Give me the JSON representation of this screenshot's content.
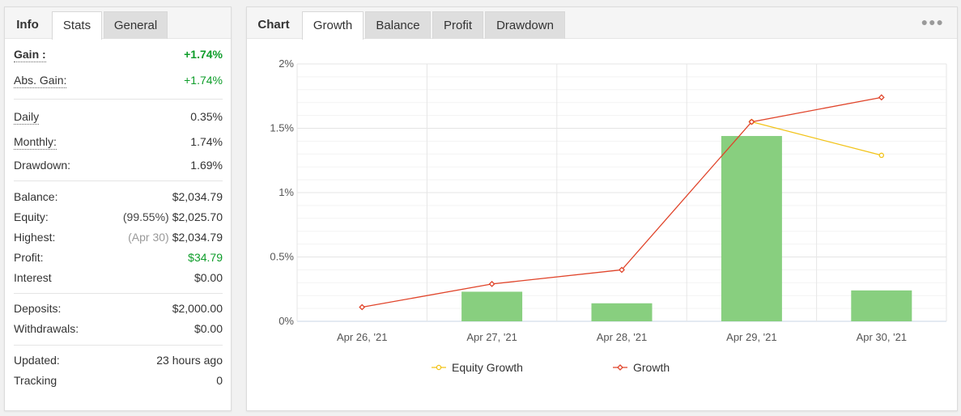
{
  "left_panel": {
    "tabs": [
      {
        "label": "Info"
      },
      {
        "label": "Stats"
      },
      {
        "label": "General"
      }
    ],
    "gain": {
      "label": "Gain :",
      "value": "+1.74%"
    },
    "abs_gain": {
      "label": "Abs. Gain:",
      "value": "+1.74%"
    },
    "daily": {
      "label": "Daily",
      "value": "0.35%"
    },
    "monthly": {
      "label": "Monthly:",
      "value": "1.74%"
    },
    "drawdown": {
      "label": "Drawdown:",
      "value": "1.69%"
    },
    "balance": {
      "label": "Balance:",
      "value": "$2,034.79"
    },
    "equity": {
      "label": "Equity:",
      "prefix": "(99.55%)",
      "value": "$2,025.70"
    },
    "highest": {
      "label": "Highest:",
      "prefix": "(Apr 30)",
      "value": "$2,034.79"
    },
    "profit": {
      "label": "Profit:",
      "value": "$34.79"
    },
    "interest": {
      "label": "Interest",
      "value": "$0.00"
    },
    "deposits": {
      "label": "Deposits:",
      "value": "$2,000.00"
    },
    "withdrawals": {
      "label": "Withdrawals:",
      "value": "$0.00"
    },
    "updated": {
      "label": "Updated:",
      "value": "23 hours ago"
    },
    "tracking": {
      "label": "Tracking",
      "value": "0"
    }
  },
  "right_panel": {
    "tabs": [
      {
        "label": "Chart"
      },
      {
        "label": "Growth"
      },
      {
        "label": "Balance"
      },
      {
        "label": "Profit"
      },
      {
        "label": "Drawdown"
      }
    ],
    "more_icon": "more-dots-icon"
  },
  "colors": {
    "positive": "#0e9d2a",
    "bar": "#88cf7f",
    "growth_line": "#e0442a",
    "equity_line": "#f2c318"
  },
  "chart_data": {
    "type": "bar",
    "categories": [
      "Apr 26, '21",
      "Apr 27, '21",
      "Apr 28, '21",
      "Apr 29, '21",
      "Apr 30, '21"
    ],
    "ylim": [
      0,
      2
    ],
    "yticks": [
      "0%",
      "0.5%",
      "1%",
      "1.5%",
      "2%"
    ],
    "bars": [
      0,
      0.23,
      0.14,
      1.44,
      0.24
    ],
    "series": [
      {
        "name": "Equity Growth",
        "type": "line",
        "points": [
          {
            "x": 3,
            "y": 1.55
          },
          {
            "x": 4,
            "y": 1.29
          }
        ]
      },
      {
        "name": "Growth",
        "type": "line",
        "values": [
          0.11,
          0.29,
          0.4,
          1.55,
          1.74
        ]
      }
    ],
    "grid": true,
    "legend_position": "bottom"
  }
}
